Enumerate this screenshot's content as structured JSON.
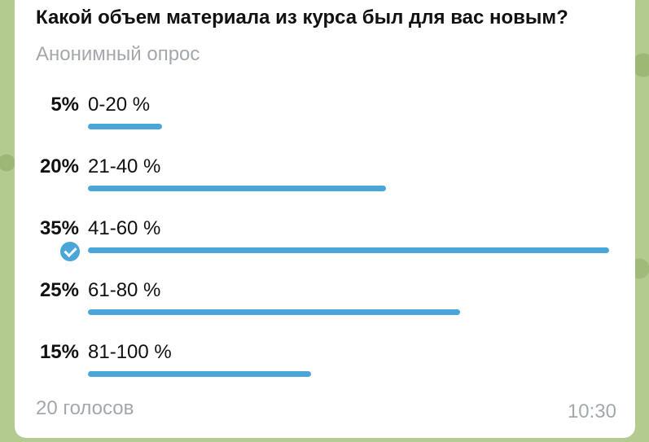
{
  "poll": {
    "question": "Какой объем материала из курса был для вас новым?",
    "type_label": "Анонимный опрос",
    "options": [
      {
        "percent_label": "5%",
        "label": "0-20 %",
        "share": 0.05,
        "selected": false
      },
      {
        "percent_label": "20%",
        "label": "21-40 %",
        "share": 0.2,
        "selected": false
      },
      {
        "percent_label": "35%",
        "label": "41-60 %",
        "share": 0.35,
        "selected": true
      },
      {
        "percent_label": "25%",
        "label": "61-80 %",
        "share": 0.25,
        "selected": false
      },
      {
        "percent_label": "15%",
        "label": "81-100 %",
        "share": 0.15,
        "selected": false
      }
    ],
    "votes_label": "20 голосов",
    "time": "10:30"
  },
  "colors": {
    "bar": "#4aa6d9",
    "check": "#4aa6d9",
    "muted_text": "#a3a8ad"
  }
}
